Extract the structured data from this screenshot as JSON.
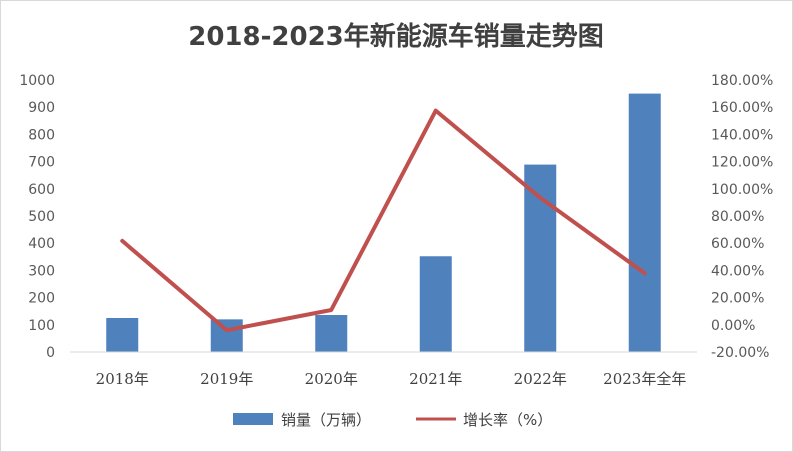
{
  "chart_data": {
    "type": "bar",
    "title": "2018-2023年新能源车销量走势图",
    "categories": [
      "2018年",
      "2019年",
      "2020年",
      "2021年",
      "2022年",
      "2023年全年"
    ],
    "series": [
      {
        "name": "销量（万辆）",
        "type": "bar",
        "axis": "left",
        "values": [
          125,
          120,
          136,
          352,
          689,
          950
        ],
        "color": "#4f81bd"
      },
      {
        "name": "增长率（%）",
        "type": "line",
        "axis": "right",
        "values": [
          61.7,
          -4.0,
          10.9,
          157.5,
          93.4,
          37.9
        ],
        "color": "#c0504d"
      }
    ],
    "left_axis": {
      "min": 0,
      "max": 1000,
      "step": 100,
      "ticks": [
        "0",
        "100",
        "200",
        "300",
        "400",
        "500",
        "600",
        "700",
        "800",
        "900",
        "1000"
      ]
    },
    "right_axis": {
      "min": -20,
      "max": 180,
      "step": 20,
      "ticks": [
        "-20.00%",
        "0.00%",
        "20.00%",
        "40.00%",
        "60.00%",
        "80.00%",
        "100.00%",
        "120.00%",
        "140.00%",
        "160.00%",
        "180.00%"
      ]
    },
    "xlabel": "",
    "ylabel": "",
    "grid": false,
    "legend": {
      "position": "bottom",
      "entries": [
        "销量（万辆）",
        "增长率（%）"
      ]
    }
  }
}
